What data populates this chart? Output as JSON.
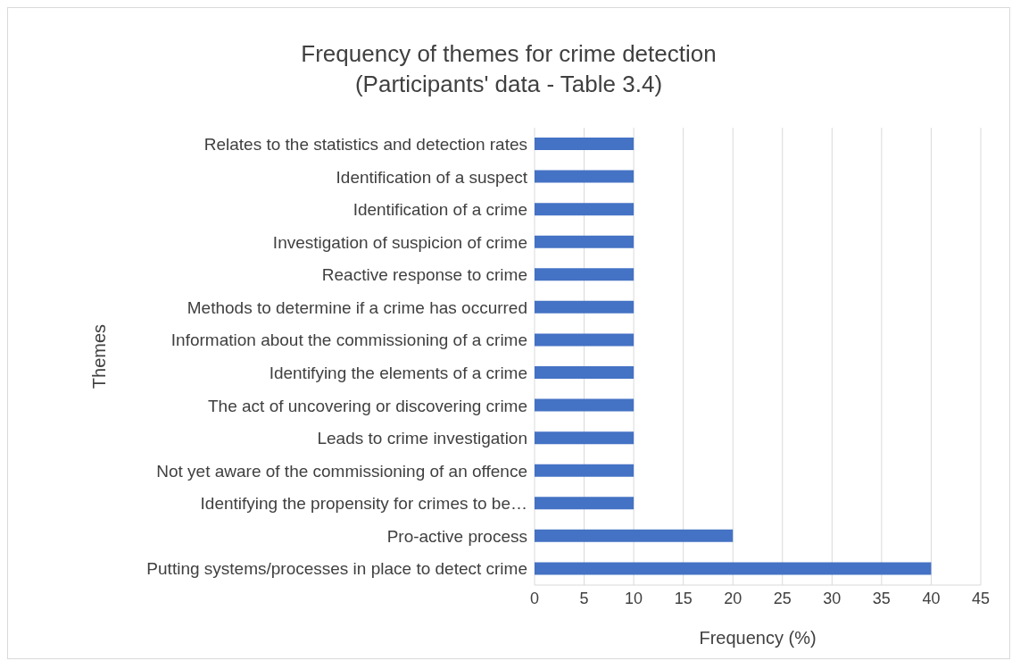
{
  "chart_data": {
    "type": "bar",
    "orientation": "horizontal",
    "title": "Frequency of themes for crime detection (Participants' data - Table 3.4)",
    "xlabel": "Frequency (%)",
    "ylabel": "Themes",
    "categories": [
      "Relates to the statistics and detection rates",
      "Identification of a suspect",
      "Identification of a crime",
      "Investigation of suspicion of crime",
      "Reactive response to crime",
      "Methods to determine if a crime has occurred",
      "Information about the commissioning of a crime",
      "Identifying the elements of a crime",
      "The act of uncovering or discovering crime",
      "Leads to crime investigation",
      "Not yet aware of the commissioning of an offence",
      "Identifying the propensity for crimes to be…",
      "Pro-active process",
      "Putting systems/processes in place to detect crime"
    ],
    "values": [
      10,
      10,
      10,
      10,
      10,
      10,
      10,
      10,
      10,
      10,
      10,
      10,
      20,
      40
    ],
    "color": "#4472c4",
    "xlim": [
      0,
      45
    ],
    "xticks": [
      0,
      5,
      10,
      15,
      20,
      25,
      30,
      35,
      40,
      45
    ],
    "grid": "x",
    "legend": false
  }
}
